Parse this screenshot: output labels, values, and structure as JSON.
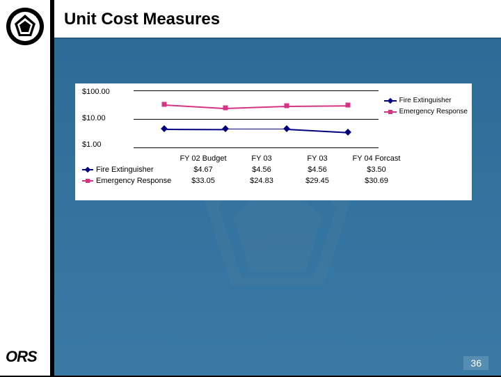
{
  "title": "Unit Cost Measures",
  "page_number": "36",
  "logos": {
    "sidebar_top": "nih-seal",
    "sidebar_bottom": "ORS"
  },
  "chart": {
    "type": "line",
    "scale": "log",
    "background_color": "#ffffff",
    "grid_color": "#000000",
    "y_ticks": [
      {
        "label": "$100.00",
        "value": 100
      },
      {
        "label": "$10.00",
        "value": 10
      },
      {
        "label": "$1.00",
        "value": 1
      }
    ],
    "ylim": [
      1,
      100
    ],
    "categories": [
      "FY 02 Budget",
      "FY 03",
      "FY 03",
      "FY 04 Forcast"
    ],
    "series": [
      {
        "name": "Fire Extinguisher",
        "color": "#000080",
        "marker": "diamond",
        "line_width": 1.5,
        "values": [
          4.67,
          4.56,
          4.56,
          3.5
        ],
        "value_labels": [
          "$4.67",
          "$4.56",
          "$4.56",
          "$3.50"
        ]
      },
      {
        "name": "Emergency Response",
        "color": "#d63384",
        "marker": "square",
        "line_width": 1.5,
        "values": [
          33.05,
          24.83,
          29.45,
          30.69
        ],
        "value_labels": [
          "$33.05",
          "$24.83",
          "$29.45",
          "$30.69"
        ]
      }
    ],
    "legend_position": "right",
    "title_fontsize": 24,
    "label_fontsize": 11
  },
  "colors": {
    "slide_bg_top": "#2b6a95",
    "slide_bg_bottom": "#3a7aa5",
    "sidebar_bg": "#ffffff",
    "sidebar_rule": "#000000",
    "watermark": "#64879f"
  }
}
